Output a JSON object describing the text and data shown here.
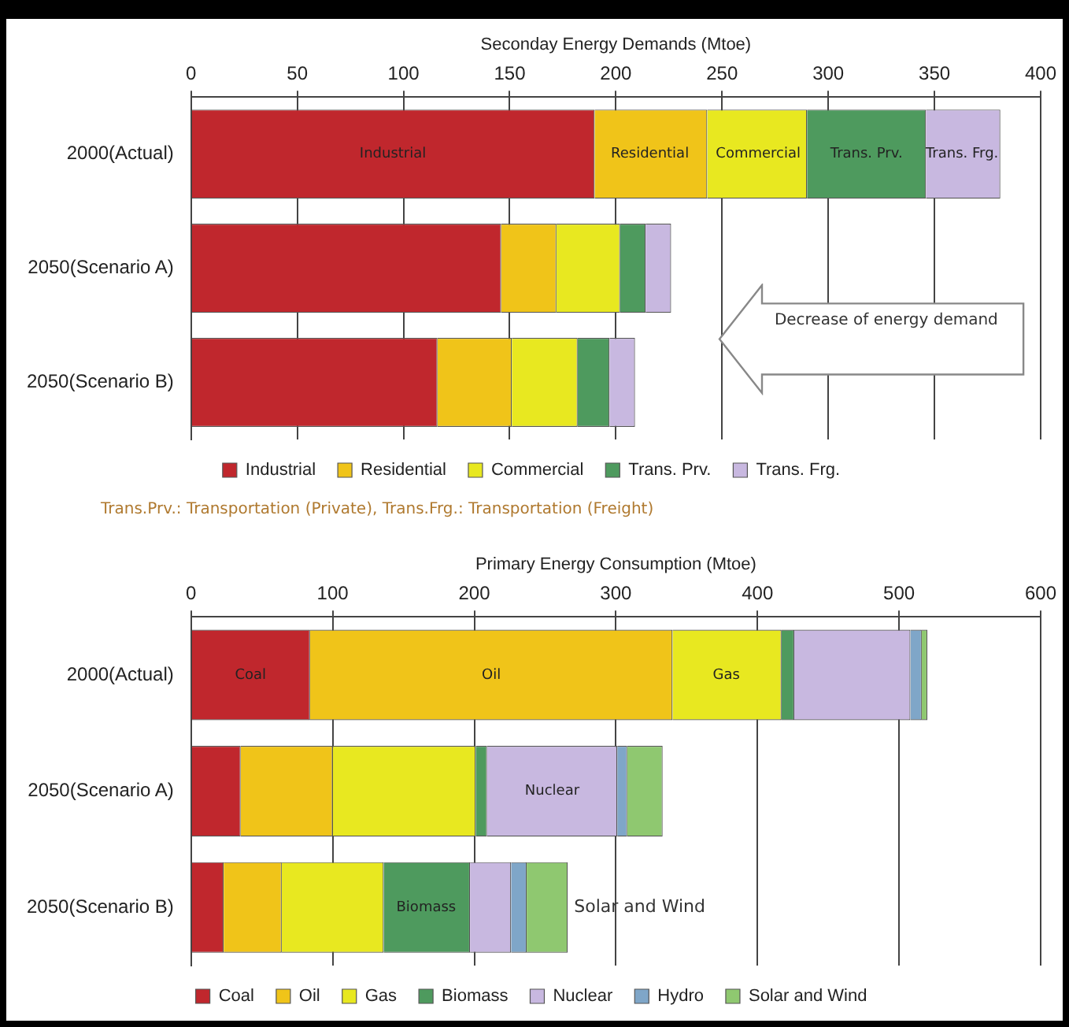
{
  "chart_data": [
    {
      "type": "bar",
      "orientation": "horizontal",
      "stacked": true,
      "xlabel": "Seconday Energy Demands (Mtoe)",
      "categories": [
        "2000(Actual)",
        "2050(Scenario A)",
        "2050(Scenario B)"
      ],
      "xlim": [
        0,
        400
      ],
      "xticks": [
        0,
        50,
        100,
        150,
        200,
        250,
        300,
        350,
        400
      ],
      "grid": "x",
      "legend": "bottom",
      "series": [
        {
          "name": "Industrial",
          "color": "#c0272d",
          "values": [
            190,
            146,
            116
          ]
        },
        {
          "name": "Residential",
          "color": "#f0c419",
          "values": [
            53,
            26,
            35
          ]
        },
        {
          "name": "Commercial",
          "color": "#e8e820",
          "values": [
            47,
            30,
            31
          ]
        },
        {
          "name": "Trans. Prv.",
          "color": "#4e9a5e",
          "values": [
            56,
            12,
            15
          ]
        },
        {
          "name": "Trans. Frg.",
          "color": "#c8b8e0",
          "values": [
            35,
            12,
            12
          ]
        }
      ],
      "annotations": [
        "Decrease of energy demand",
        "Trans.Prv.: Transportation (Private), Trans.Frg.: Transportation (Freight)",
        {
          "text": "Industrial",
          "x": 95,
          "y": "2000(Actual)"
        },
        {
          "text": "Residential",
          "x": 216,
          "y": "2000(Actual)"
        },
        {
          "text": "Commercial",
          "x": 267,
          "y": "2000(Actual)"
        },
        {
          "text": "Trans. Prv.",
          "x": 318,
          "y": "2000(Actual)"
        },
        {
          "text": "Trans. Frg.",
          "x": 363,
          "y": "2000(Actual)"
        }
      ]
    },
    {
      "type": "bar",
      "orientation": "horizontal",
      "stacked": true,
      "xlabel": "Primary Energy Consumption (Mtoe)",
      "categories": [
        "2000(Actual)",
        "2050(Scenario A)",
        "2050(Scenario B)"
      ],
      "xlim": [
        0,
        600
      ],
      "xticks": [
        0,
        100,
        200,
        300,
        400,
        500,
        600
      ],
      "grid": "x",
      "legend": "bottom",
      "series": [
        {
          "name": "Coal",
          "color": "#c0272d",
          "values": [
            84,
            35,
            23
          ]
        },
        {
          "name": "Oil",
          "color": "#f0c419",
          "values": [
            256,
            65,
            41
          ]
        },
        {
          "name": "Gas",
          "color": "#e8e820",
          "values": [
            77,
            101,
            72
          ]
        },
        {
          "name": "Biomass",
          "color": "#4e9a5e",
          "values": [
            9,
            8,
            61
          ]
        },
        {
          "name": "Nuclear",
          "color": "#c8b8e0",
          "values": [
            82,
            92,
            29
          ]
        },
        {
          "name": "Hydro",
          "color": "#7fa6c8",
          "values": [
            8,
            7,
            11
          ]
        },
        {
          "name": "Solar and Wind",
          "color": "#8fc870",
          "values": [
            4,
            25,
            29
          ]
        }
      ],
      "annotations": [
        {
          "text": "Coal",
          "x": 42,
          "y": "2000(Actual)"
        },
        {
          "text": "Oil",
          "x": 212,
          "y": "2000(Actual)"
        },
        {
          "text": "Gas",
          "x": 378,
          "y": "2000(Actual)"
        },
        {
          "text": "Nuclear",
          "x": 255,
          "y": "2050(Scenario A)"
        },
        {
          "text": "Biomass",
          "x": 166,
          "y": "2050(Scenario B)"
        },
        "Solar and Wind"
      ]
    }
  ]
}
